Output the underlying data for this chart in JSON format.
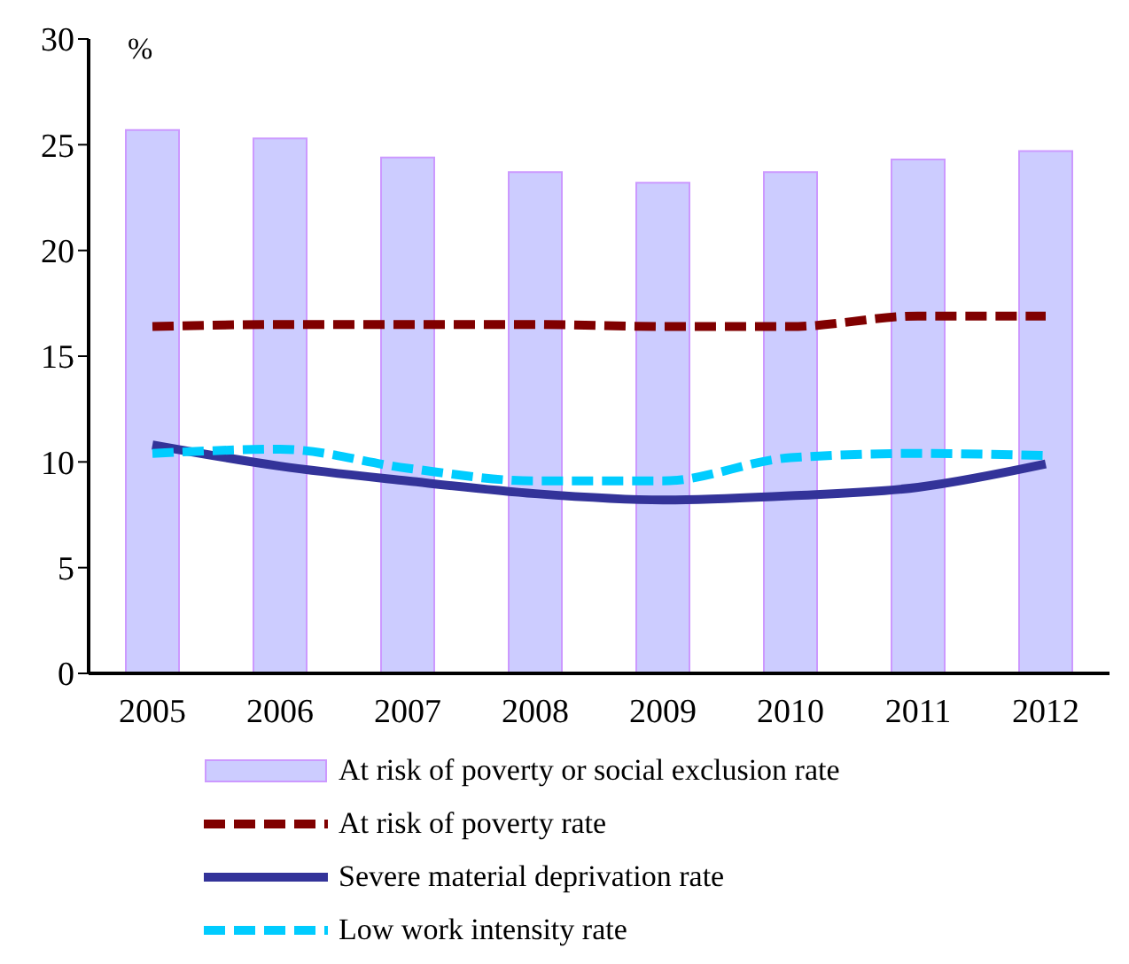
{
  "chart_data": {
    "type": "bar",
    "ylabel": "%",
    "categories": [
      "2005",
      "2006",
      "2007",
      "2008",
      "2009",
      "2010",
      "2011",
      "2012"
    ],
    "series": [
      {
        "name": "At risk of poverty or social exclusion rate",
        "color": "#ccccff",
        "values": [
          25.7,
          25.3,
          24.4,
          23.7,
          23.2,
          23.7,
          24.3,
          24.7
        ]
      },
      {
        "name": "At risk of poverty rate",
        "type": "line",
        "line_style": "dashed",
        "color": "#800000",
        "values": [
          16.4,
          16.5,
          16.5,
          16.5,
          16.4,
          16.4,
          16.9,
          16.9
        ]
      },
      {
        "name": "Severe material deprivation rate",
        "type": "line",
        "line_style": "solid",
        "color": "#333399",
        "values": [
          10.8,
          9.8,
          9.1,
          8.5,
          8.2,
          8.4,
          8.8,
          9.9
        ]
      },
      {
        "name": "Low work intensity rate",
        "type": "line",
        "line_style": "dashed",
        "color": "#00ccff",
        "values": [
          10.4,
          10.6,
          9.7,
          9.1,
          9.1,
          10.2,
          10.4,
          10.3
        ]
      }
    ],
    "ylim": [
      0,
      30
    ],
    "yticks": [
      0,
      5,
      10,
      15,
      20,
      25,
      30
    ],
    "grid": false,
    "legend": "bottom",
    "marker": "none"
  }
}
